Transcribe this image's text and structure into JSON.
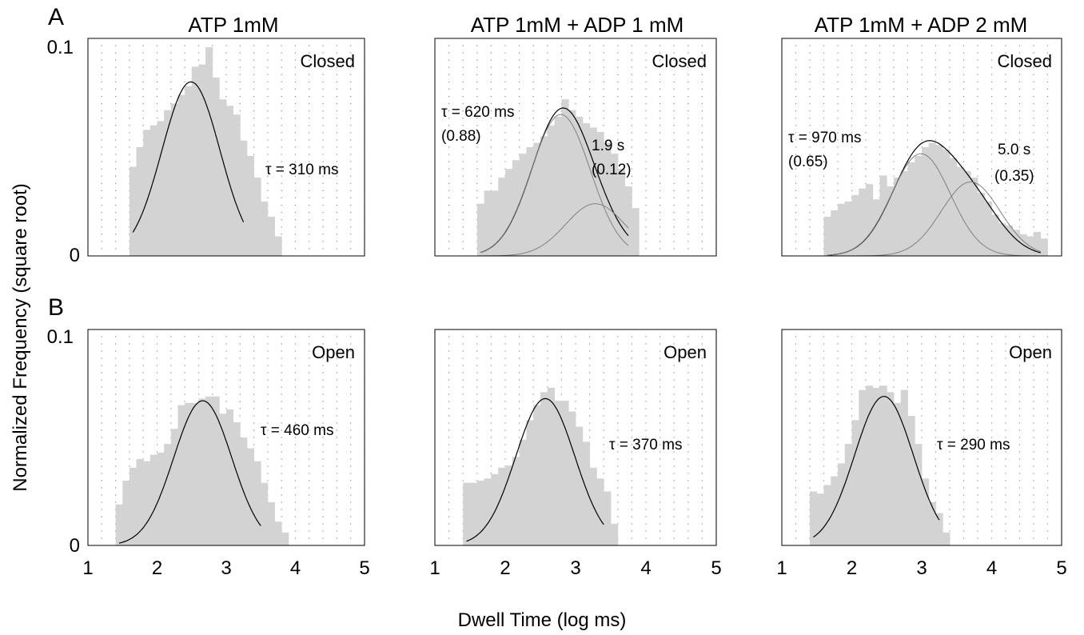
{
  "figure": {
    "ylabel": "Normalized Frequency  (square root)",
    "xlabel": "Dwell Time (log ms)",
    "row_labels": [
      "A",
      "B"
    ],
    "column_titles": [
      "ATP 1mM",
      "ATP 1mM + ADP 1 mM",
      "ATP 1mM + ADP 2 mM"
    ],
    "y_tick_labels": {
      "top": "0.1",
      "bottom": "0"
    },
    "x_tick_labels": [
      "1",
      "2",
      "3",
      "4",
      "5"
    ],
    "colors": {
      "bars": "#d3d3d3",
      "fit": "#000000",
      "component": "#808080",
      "frame": "#000000"
    }
  },
  "chart_data": [
    {
      "type": "bar",
      "panel": "A",
      "column": "ATP 1mM",
      "state": "Closed",
      "xlim": [
        1,
        5
      ],
      "ylim": [
        0,
        0.1
      ],
      "bin_width": 0.1,
      "bins": [
        {
          "x0": 1.6,
          "values": [
            0.041,
            0.05,
            0.058,
            0.06,
            0.062,
            0.067,
            0.07,
            0.074,
            0.078,
            0.087,
            0.088,
            0.096,
            0.082,
            0.072,
            0.069,
            0.065,
            0.053,
            0.046,
            0.036,
            0.025,
            0.018,
            0.009
          ]
        }
      ],
      "fits": [
        {
          "kind": "total",
          "tau_log": [
            2.49
          ],
          "weights": [
            1
          ],
          "peak": 0.08,
          "x": [
            1.65,
            3.25
          ]
        }
      ],
      "annotations": [
        {
          "text": "τ = 310 ms"
        }
      ]
    },
    {
      "type": "bar",
      "panel": "A",
      "column": "ATP 1mM + ADP 1 mM",
      "state": "Closed",
      "xlim": [
        1,
        5
      ],
      "ylim": [
        0,
        0.1
      ],
      "bin_width": 0.1,
      "bins": [
        {
          "x0": 1.6,
          "values": [
            0.024,
            0.03,
            0.03,
            0.036,
            0.04,
            0.044,
            0.047,
            0.05,
            0.052,
            0.055,
            0.06,
            0.064,
            0.072,
            0.067,
            0.064,
            0.061,
            0.059,
            0.057,
            0.052,
            0.047,
            0.04,
            0.032,
            0.022
          ]
        }
      ],
      "fits": [
        {
          "kind": "total",
          "tau_log": [
            2.79,
            3.28
          ],
          "weights": [
            0.88,
            0.12
          ],
          "peak": 0.068,
          "x": [
            1.65,
            3.75
          ]
        },
        {
          "kind": "component",
          "tau_log": [
            2.79
          ],
          "weights": [
            1
          ],
          "peak": 0.065,
          "x": [
            1.65,
            3.75
          ]
        },
        {
          "kind": "component",
          "tau_log": [
            3.28
          ],
          "weights": [
            1
          ],
          "peak": 0.024,
          "x": [
            1.65,
            3.75
          ]
        }
      ],
      "annotations": [
        {
          "text": "τ = 620 ms"
        },
        {
          "text": "(0.88)"
        },
        {
          "text": "1.9 s"
        },
        {
          "text": "(0.12)"
        }
      ]
    },
    {
      "type": "bar",
      "panel": "A",
      "column": "ATP 1mM + ADP 2 mM",
      "state": "Closed",
      "xlim": [
        1,
        5
      ],
      "ylim": [
        0,
        0.1
      ],
      "bin_width": 0.1,
      "bins": [
        {
          "x0": 1.6,
          "values": [
            0.018,
            0.021,
            0.024,
            0.025,
            0.028,
            0.031,
            0.033,
            0.026,
            0.037,
            0.032,
            0.036,
            0.039,
            0.043,
            0.046,
            0.05,
            0.052,
            0.051,
            0.049,
            0.045,
            0.041,
            0.039,
            0.036,
            0.029,
            0.025,
            0.019,
            0.015,
            0.014,
            0.012,
            0.01,
            0.009,
            0.011,
            0.008
          ]
        }
      ],
      "fits": [
        {
          "kind": "total",
          "tau_log": [
            2.99,
            3.7
          ],
          "weights": [
            0.65,
            0.35
          ],
          "peak": 0.053,
          "x": [
            1.65,
            4.7
          ]
        },
        {
          "kind": "component",
          "tau_log": [
            2.99
          ],
          "weights": [
            1
          ],
          "peak": 0.047,
          "x": [
            1.65,
            4.7
          ]
        },
        {
          "kind": "component",
          "tau_log": [
            3.7
          ],
          "weights": [
            1
          ],
          "peak": 0.034,
          "x": [
            1.65,
            4.7
          ]
        }
      ],
      "annotations": [
        {
          "text": "τ = 970 ms"
        },
        {
          "text": "(0.65)"
        },
        {
          "text": "5.0 s"
        },
        {
          "text": "(0.35)"
        }
      ]
    },
    {
      "type": "bar",
      "panel": "B",
      "column": "ATP 1mM",
      "state": "Open",
      "xlim": [
        1,
        5
      ],
      "ylim": [
        0,
        0.1
      ],
      "bin_width": 0.1,
      "bins": [
        {
          "x0": 1.4,
          "values": [
            0.019,
            0.03,
            0.036,
            0.04,
            0.039,
            0.042,
            0.043,
            0.047,
            0.054,
            0.065,
            0.066,
            0.066,
            0.068,
            0.069,
            0.069,
            0.061,
            0.063,
            0.057,
            0.05,
            0.045,
            0.039,
            0.029,
            0.02,
            0.011,
            0.006
          ]
        }
      ],
      "fits": [
        {
          "kind": "total",
          "tau_log": [
            2.66
          ],
          "weights": [
            1
          ],
          "peak": 0.067,
          "x": [
            1.45,
            3.5
          ]
        }
      ],
      "annotations": [
        {
          "text": "τ = 460 ms"
        }
      ]
    },
    {
      "type": "bar",
      "panel": "B",
      "column": "ATP 1mM + ADP 1 mM",
      "state": "Open",
      "xlim": [
        1,
        5
      ],
      "ylim": [
        0,
        0.1
      ],
      "bin_width": 0.1,
      "bins": [
        {
          "x0": 1.4,
          "values": [
            0.029,
            0.029,
            0.03,
            0.031,
            0.033,
            0.036,
            0.037,
            0.041,
            0.049,
            0.058,
            0.065,
            0.071,
            0.073,
            0.067,
            0.067,
            0.062,
            0.055,
            0.048,
            0.036,
            0.031,
            0.025,
            0.01
          ]
        }
      ],
      "fits": [
        {
          "kind": "total",
          "tau_log": [
            2.57
          ],
          "weights": [
            1
          ],
          "peak": 0.068,
          "x": [
            1.45,
            3.4
          ]
        }
      ],
      "annotations": [
        {
          "text": "τ = 370 ms"
        }
      ]
    },
    {
      "type": "bar",
      "panel": "B",
      "column": "ATP 1mM + ADP 2 mM",
      "state": "Open",
      "xlim": [
        1,
        5
      ],
      "ylim": [
        0,
        0.1
      ],
      "bin_width": 0.1,
      "bins": [
        {
          "x0": 1.4,
          "values": [
            0.025,
            0.024,
            0.028,
            0.032,
            0.038,
            0.047,
            0.058,
            0.072,
            0.074,
            0.073,
            0.074,
            0.071,
            0.066,
            0.072,
            0.06,
            0.047,
            0.031,
            0.02,
            0.015,
            0.006
          ]
        }
      ],
      "fits": [
        {
          "kind": "total",
          "tau_log": [
            2.46
          ],
          "weights": [
            1
          ],
          "peak": 0.069,
          "x": [
            1.45,
            3.25
          ]
        }
      ],
      "annotations": [
        {
          "text": "τ = 290 ms"
        }
      ]
    }
  ]
}
